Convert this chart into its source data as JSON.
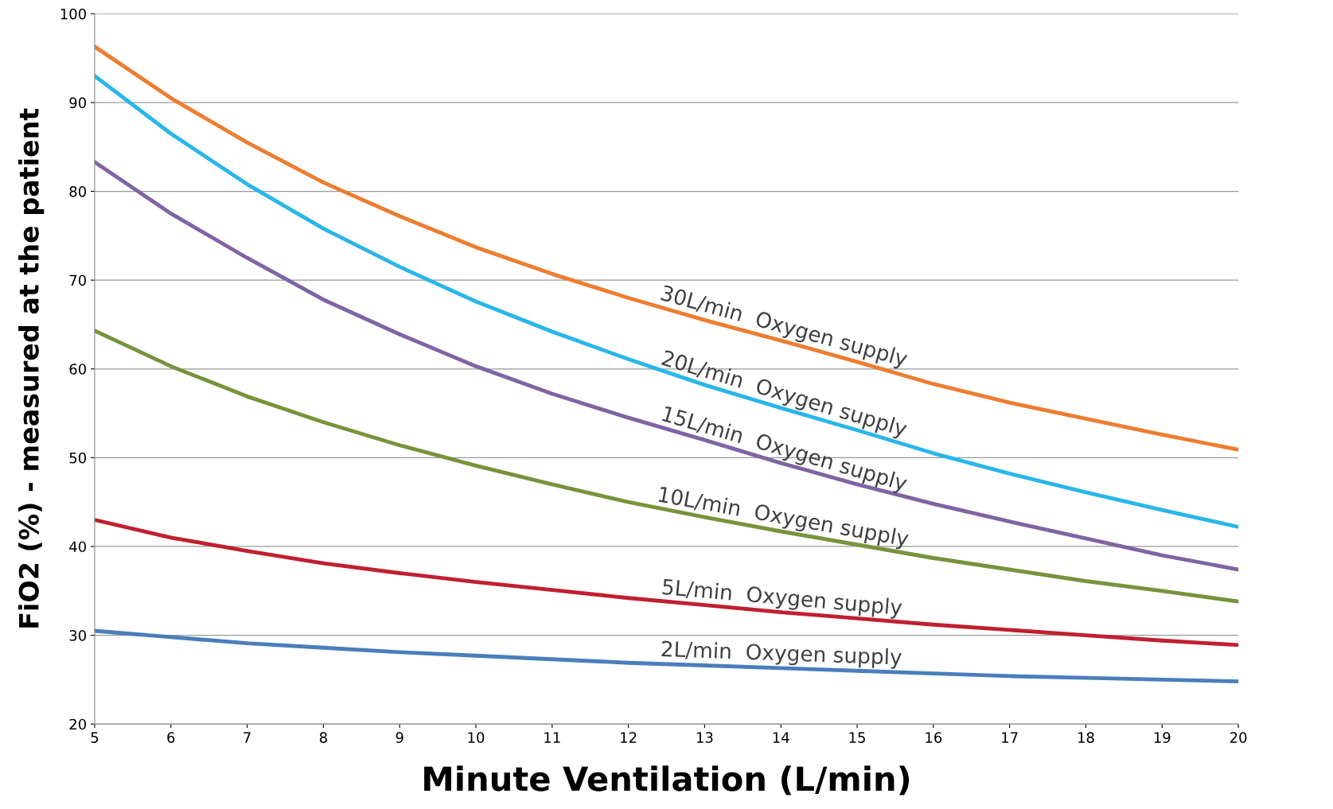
{
  "chart_data": {
    "type": "line",
    "xlabel": "Minute Ventilation (L/min)",
    "ylabel": "FiO2 (%) - measured at the patient",
    "x": [
      5,
      6,
      7,
      8,
      9,
      10,
      11,
      12,
      13,
      14,
      15,
      16,
      17,
      18,
      19,
      20
    ],
    "xlim": [
      5,
      20
    ],
    "xticks": [
      5,
      6,
      7,
      8,
      9,
      10,
      11,
      12,
      13,
      14,
      15,
      16,
      17,
      18,
      19,
      20
    ],
    "ylim": [
      20,
      100
    ],
    "yticks": [
      20,
      30,
      40,
      50,
      60,
      70,
      80,
      90,
      100
    ],
    "grid": "y",
    "legend": false,
    "marker": "none",
    "line_style": "solid",
    "series": [
      {
        "name": "30L/min  Oxygen supply",
        "color": "#ed7d31",
        "values": [
          96.3,
          90.5,
          85.5,
          81,
          77.2,
          73.7,
          70.7,
          68,
          65.5,
          63.2,
          60.8,
          58.3,
          56.2,
          54.4,
          52.6,
          50.9
        ]
      },
      {
        "name": "20L/min  Oxygen supply",
        "color": "#29b6e8",
        "values": [
          93,
          86.5,
          80.8,
          75.8,
          71.5,
          67.6,
          64.2,
          61.1,
          58.2,
          55.6,
          53.1,
          50.5,
          48.2,
          46.1,
          44.1,
          42.2
        ]
      },
      {
        "name": "15L/min  Oxygen supply",
        "color": "#8064a2",
        "values": [
          83.3,
          77.5,
          72.5,
          67.8,
          63.9,
          60.3,
          57.2,
          54.5,
          52,
          49.4,
          47,
          44.8,
          42.8,
          40.9,
          39,
          37.4
        ]
      },
      {
        "name": "10L/min  Oxygen supply",
        "color": "#77933c",
        "values": [
          64.3,
          60.3,
          56.9,
          54,
          51.4,
          49.1,
          47,
          45,
          43.3,
          41.7,
          40.2,
          38.7,
          37.4,
          36.1,
          35,
          33.8
        ]
      },
      {
        "name": "5L/min  Oxygen supply",
        "color": "#c0202f",
        "values": [
          43,
          41,
          39.5,
          38.1,
          37,
          36,
          35.1,
          34.2,
          33.4,
          32.6,
          31.9,
          31.2,
          30.6,
          30,
          29.4,
          28.9
        ]
      },
      {
        "name": "2L/min  Oxygen supply",
        "color": "#4a7ebb",
        "values": [
          30.5,
          29.8,
          29.1,
          28.6,
          28.1,
          27.7,
          27.3,
          26.9,
          26.6,
          26.3,
          26,
          25.7,
          25.4,
          25.2,
          25,
          24.8
        ]
      }
    ]
  }
}
